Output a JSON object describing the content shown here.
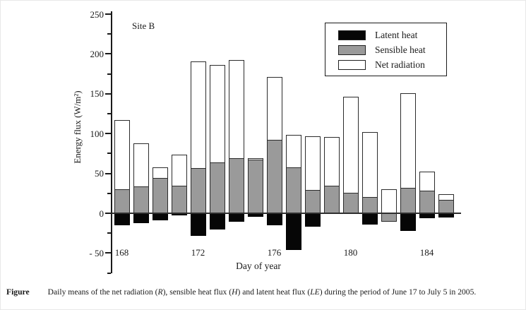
{
  "site_label": "Site B",
  "axes": {
    "y_title": "Energy flux (W/m²)",
    "x_title": "Day of year",
    "y_major_ticks": [
      250,
      200,
      150,
      100,
      50,
      0,
      -50
    ],
    "y_major_labels": [
      "250",
      "200",
      "150",
      "100",
      "50",
      "0",
      "- 50"
    ],
    "y_minor_ticks": [
      225,
      175,
      125,
      75,
      25,
      -25,
      -75
    ],
    "x_tick_days": [
      168,
      172,
      176,
      180,
      184
    ],
    "x_tick_labels": [
      "168",
      "172",
      "176",
      "180",
      "184"
    ]
  },
  "legend": [
    {
      "label": "Latent heat",
      "color": "#060606"
    },
    {
      "label": "Sensible heat",
      "color": "#9a9a9a"
    },
    {
      "label": "Net radiation",
      "color": "#ffffff"
    }
  ],
  "chart_data": {
    "type": "bar",
    "title": "Site B",
    "xlabel": "Day of year",
    "ylabel": "Energy flux (W/m²)",
    "ylim": [
      -75,
      250
    ],
    "grid": false,
    "legend_position": "top-right",
    "categories": [
      168,
      169,
      170,
      171,
      172,
      173,
      174,
      175,
      176,
      177,
      178,
      179,
      180,
      181,
      182,
      183,
      184,
      185
    ],
    "series": [
      {
        "name": "Net radiation",
        "color": "#ffffff",
        "values": [
          117,
          88,
          58,
          74,
          191,
          186,
          192,
          69,
          171,
          98,
          97,
          96,
          146,
          102,
          30,
          151,
          52,
          24
        ]
      },
      {
        "name": "Sensible heat",
        "color": "#9a9a9a",
        "values": [
          30,
          34,
          44,
          35,
          57,
          64,
          69,
          67,
          92,
          58,
          29,
          35,
          26,
          20,
          -11,
          32,
          28,
          17
        ]
      },
      {
        "name": "Latent heat",
        "color": "#060606",
        "values": [
          -15,
          -12,
          -9,
          -3,
          -28,
          -20,
          -11,
          -4,
          -15,
          -46,
          -17,
          0,
          0,
          -14,
          0,
          -22,
          -6,
          -5
        ]
      }
    ]
  },
  "caption": {
    "label": "Figure",
    "segments": [
      {
        "text": "Daily means of the net radiation (",
        "italic": false
      },
      {
        "text": "R",
        "italic": true
      },
      {
        "text": "), sensible heat flux (",
        "italic": false
      },
      {
        "text": "H",
        "italic": true
      },
      {
        "text": ") and latent heat flux (",
        "italic": false
      },
      {
        "text": "LE",
        "italic": true
      },
      {
        "text": ") during the period of June 17 to July 5 in 2005.",
        "italic": false
      }
    ]
  }
}
